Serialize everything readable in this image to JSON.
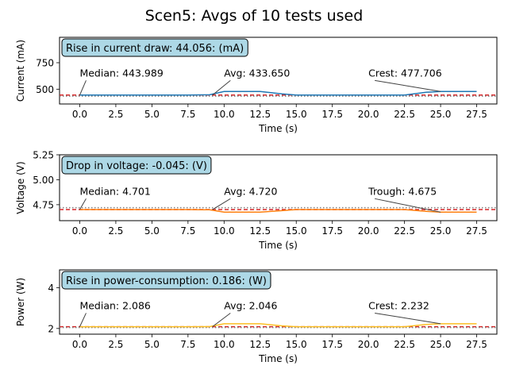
{
  "figure": {
    "title": "Scen5: Avgs of 10 tests used"
  },
  "chart_data": [
    {
      "type": "line",
      "xlabel": "Time (s)",
      "ylabel": "Current (mA)",
      "xlim": [
        -1.4,
        28.9
      ],
      "ylim": [
        360,
        990
      ],
      "xticks": [
        0.0,
        2.5,
        5.0,
        7.5,
        10.0,
        12.5,
        15.0,
        17.5,
        20.0,
        22.5,
        25.0,
        27.5
      ],
      "xtick_labels": [
        "0.0",
        "2.5",
        "5.0",
        "7.5",
        "10.0",
        "12.5",
        "15.0",
        "17.5",
        "20.0",
        "22.5",
        "25.0",
        "27.5"
      ],
      "yticks": [
        500,
        750
      ],
      "ytick_labels": [
        "500",
        "750"
      ],
      "series": [
        {
          "color": "#1f77b4",
          "x": [
            0,
            2.5,
            5,
            7.5,
            9,
            10,
            12.5,
            14,
            15,
            17.5,
            20,
            22.5,
            24,
            25,
            27.5
          ],
          "y": [
            444,
            444,
            444,
            444,
            447,
            478,
            478,
            455,
            444,
            444,
            444,
            444,
            470,
            478,
            478
          ]
        }
      ],
      "median_line": 443.989,
      "avg_line": 433.65,
      "median_color": "#d62728",
      "avg_color": "#7f7f7f",
      "box_text": "Rise in current draw: 44.056: (mA)",
      "annotations": [
        {
          "text": "Median: 443.989",
          "x_text": 0,
          "y_text": 620,
          "x_point": 0,
          "y_point": 443.989
        },
        {
          "text": "Avg: 433.650",
          "x_text": 10,
          "y_text": 620,
          "x_point": 9.2,
          "y_point": 444
        },
        {
          "text": "Crest: 477.706",
          "x_text": 20,
          "y_text": 620,
          "x_point": 25,
          "y_point": 478
        }
      ]
    },
    {
      "type": "line",
      "xlabel": "Time (s)",
      "ylabel": "Voltage (V)",
      "xlim": [
        -1.4,
        28.9
      ],
      "ylim": [
        4.59,
        5.25
      ],
      "xticks": [
        0.0,
        2.5,
        5.0,
        7.5,
        10.0,
        12.5,
        15.0,
        17.5,
        20.0,
        22.5,
        25.0,
        27.5
      ],
      "xtick_labels": [
        "0.0",
        "2.5",
        "5.0",
        "7.5",
        "10.0",
        "12.5",
        "15.0",
        "17.5",
        "20.0",
        "22.5",
        "25.0",
        "27.5"
      ],
      "yticks": [
        4.75,
        5.0,
        5.25
      ],
      "ytick_labels": [
        "4.75",
        "5.00",
        "5.25"
      ],
      "series": [
        {
          "color": "#ff7f0e",
          "x": [
            0,
            2.5,
            5,
            7.5,
            9,
            10,
            12.5,
            14,
            15,
            17.5,
            20,
            22.5,
            24,
            25,
            27.5
          ],
          "y": [
            4.701,
            4.701,
            4.701,
            4.701,
            4.699,
            4.676,
            4.676,
            4.69,
            4.701,
            4.701,
            4.701,
            4.701,
            4.684,
            4.675,
            4.675
          ]
        }
      ],
      "median_line": 4.701,
      "avg_line": 4.72,
      "median_color": "#d62728",
      "avg_color": "#7f7f7f",
      "box_text": "Drop in voltage: -0.045: (V)",
      "annotations": [
        {
          "text": "Median: 4.701",
          "x_text": 0,
          "y_text": 4.85,
          "x_point": 0,
          "y_point": 4.701
        },
        {
          "text": "Avg: 4.720",
          "x_text": 10,
          "y_text": 4.85,
          "x_point": 9.2,
          "y_point": 4.701
        },
        {
          "text": "Trough: 4.675",
          "x_text": 20,
          "y_text": 4.85,
          "x_point": 25,
          "y_point": 4.675
        }
      ]
    },
    {
      "type": "line",
      "xlabel": "Time (s)",
      "ylabel": "Power (W)",
      "xlim": [
        -1.4,
        28.9
      ],
      "ylim": [
        1.72,
        4.88
      ],
      "xticks": [
        0.0,
        2.5,
        5.0,
        7.5,
        10.0,
        12.5,
        15.0,
        17.5,
        20.0,
        22.5,
        25.0,
        27.5
      ],
      "xtick_labels": [
        "0.0",
        "2.5",
        "5.0",
        "7.5",
        "10.0",
        "12.5",
        "15.0",
        "17.5",
        "20.0",
        "22.5",
        "25.0",
        "27.5"
      ],
      "yticks": [
        2,
        4
      ],
      "ytick_labels": [
        "2",
        "4"
      ],
      "series": [
        {
          "color": "#fbbf24",
          "x": [
            0,
            2.5,
            5,
            7.5,
            9,
            10,
            12.5,
            14,
            15,
            17.5,
            20,
            22.5,
            24,
            25,
            27.5
          ],
          "y": [
            2.086,
            2.086,
            2.086,
            2.086,
            2.09,
            2.232,
            2.232,
            2.13,
            2.086,
            2.086,
            2.086,
            2.086,
            2.2,
            2.232,
            2.232
          ]
        }
      ],
      "median_line": 2.086,
      "avg_line": 2.046,
      "median_color": "#d62728",
      "avg_color": "#7f7f7f",
      "box_text": "Rise in power-consumption: 0.186: (W)",
      "annotations": [
        {
          "text": "Median: 2.086",
          "x_text": 0,
          "y_text": 2.95,
          "x_point": 0,
          "y_point": 2.086
        },
        {
          "text": "Avg: 2.046",
          "x_text": 10,
          "y_text": 2.95,
          "x_point": 9.2,
          "y_point": 2.09
        },
        {
          "text": "Crest: 2.232",
          "x_text": 20,
          "y_text": 2.95,
          "x_point": 25,
          "y_point": 2.232
        }
      ]
    }
  ]
}
